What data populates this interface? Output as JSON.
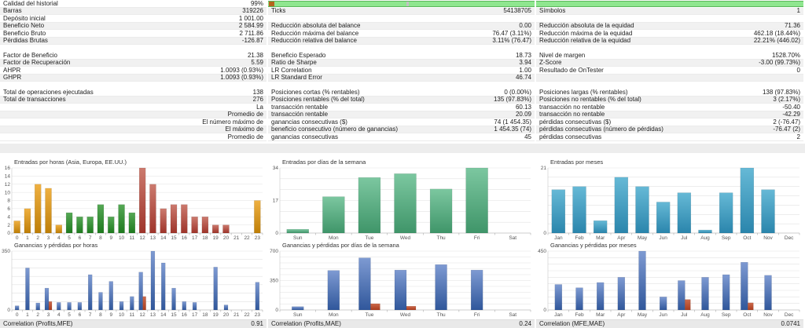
{
  "palette": {
    "asia": [
      "#EFB041",
      "#BE7E07"
    ],
    "europe": [
      "#55A855",
      "#1F7A1F"
    ],
    "usa": [
      "#CC7A6E",
      "#9E342A"
    ],
    "green2": [
      "#7CC7A0",
      "#3F9569"
    ],
    "teal": [
      "#66B9D6",
      "#2A85AC"
    ],
    "blue": [
      "#7E9AD2",
      "#30579B"
    ],
    "loss": [
      "#CC6A4C",
      "#AA3C1E"
    ],
    "quality_green": "#8FE68F",
    "quality_brown": "#B5651D",
    "quality_divider": "#C2C2C2"
  },
  "stats": {
    "columns": [
      {
        "sections": [
          [
            {
              "l": "Calidad del historial",
              "v": "99%"
            },
            {
              "l": "Barras",
              "v": "319226"
            },
            {
              "l": "Depósito inicial",
              "v": "1 001.00"
            },
            {
              "l": "Beneficio Neto",
              "v": "2 584.99"
            },
            {
              "l": "Beneficio Bruto",
              "v": "2 711.86"
            },
            {
              "l": "Pérdidas Brutas",
              "v": "-126.87"
            }
          ],
          [
            {
              "l": "Factor de Beneficio",
              "v": "21.38"
            },
            {
              "l": "Factor de Recuperación",
              "v": "5.59"
            },
            {
              "l": "AHPR",
              "v": "1.0093 (0.93%)"
            },
            {
              "l": "GHPR",
              "v": "1.0093 (0.93%)"
            }
          ],
          [
            {
              "l": "Total de operaciones ejecutadas",
              "v": "138"
            },
            {
              "l": "Total de transacciones",
              "v": "276"
            },
            {
              "l": "",
              "v": "La"
            },
            {
              "l": "",
              "v": "Promedio de"
            },
            {
              "l": "",
              "v": "El número máximo de"
            },
            {
              "l": "",
              "v": "El máximo de"
            },
            {
              "l": "",
              "v": "Promedio de"
            }
          ]
        ]
      },
      {
        "sections": [
          [
            {
              "bar": {
                "brown": true,
                "divider": true
              }
            },
            {
              "l": "Ticks",
              "v": "54138705"
            },
            {
              "l": "",
              "v": ""
            },
            {
              "l": "Reducción absoluta del balance",
              "v": "0.00"
            },
            {
              "l": "Reducción máxima del balance",
              "v": "76.47 (3.11%)"
            },
            {
              "l": "Reducción relativa del balance",
              "v": "3.11% (76.47)"
            }
          ],
          [
            {
              "l": "Beneficio Esperado",
              "v": "18.73"
            },
            {
              "l": "Ratio de Sharpe",
              "v": "3.94"
            },
            {
              "l": "LR Correlation",
              "v": "1.00"
            },
            {
              "l": "LR Standard Error",
              "v": "46.74"
            }
          ],
          [
            {
              "l": "Posiciones cortas (% rentables)",
              "v": "0 (0.00%)"
            },
            {
              "l": "Posiciones rentables (% del total)",
              "v": "135 (97.83%)"
            },
            {
              "l": "transacción rentable",
              "v": "60.13"
            },
            {
              "l": "transacción rentable",
              "v": "20.09"
            },
            {
              "l": "ganancias consecutivas ($)",
              "v": "74 (1 454.35)"
            },
            {
              "l": "beneficio consecutivo (número de ganancias)",
              "v": "1 454.35 (74)"
            },
            {
              "l": "ganancias consecutivas",
              "v": "45"
            }
          ]
        ]
      },
      {
        "sections": [
          [
            {
              "bar": {
                "brown": false,
                "divider": false
              }
            },
            {
              "l": "Símbolos",
              "v": "1"
            },
            {
              "l": "",
              "v": ""
            },
            {
              "l": "Reducción absoluta de la equidad",
              "v": "71.36"
            },
            {
              "l": "Reducción máxima de la equidad",
              "v": "462.18 (18.44%)"
            },
            {
              "l": "Reducción relativa de la equidad",
              "v": "22.21% (446.02)"
            }
          ],
          [
            {
              "l": "Nivel de margen",
              "v": "1528.70%"
            },
            {
              "l": "Z-Score",
              "v": "-3.00 (99.73%)"
            },
            {
              "l": "Resultado de OnTester",
              "v": "0"
            },
            {
              "l": "",
              "v": ""
            }
          ],
          [
            {
              "l": "Posiciones largas (% rentables)",
              "v": "138 (97.83%)"
            },
            {
              "l": "Posiciones no rentables (% del total)",
              "v": "3 (2.17%)"
            },
            {
              "l": "transacción no rentable",
              "v": "-50.40"
            },
            {
              "l": "transacción no rentable",
              "v": "-42.29"
            },
            {
              "l": "pérdidas consecutivas ($)",
              "v": "2 (-76.47)"
            },
            {
              "l": "pérdidas consecutivas (número de pérdidas)",
              "v": "-76.47 (2)"
            },
            {
              "l": "pérdidas consecutivas",
              "v": "2"
            }
          ]
        ]
      }
    ]
  },
  "chart_data": [
    {
      "type": "bar",
      "title": "Entradas por horas (Asia, Europa, EE.UU.)",
      "categories": [
        "0",
        "1",
        "2",
        "3",
        "4",
        "5",
        "6",
        "7",
        "8",
        "9",
        "10",
        "11",
        "12",
        "13",
        "14",
        "15",
        "16",
        "17",
        "18",
        "19",
        "20",
        "21",
        "22",
        "23"
      ],
      "values": [
        3,
        6,
        12,
        11,
        2,
        5,
        4,
        4,
        7,
        4,
        7,
        5,
        16,
        12,
        6,
        7,
        7,
        4,
        4,
        2,
        2,
        0,
        0,
        8
      ],
      "sessions": [
        "asia",
        "asia",
        "asia",
        "asia",
        "asia",
        "europe",
        "europe",
        "europe",
        "europe",
        "europe",
        "europe",
        "europe",
        "usa",
        "usa",
        "usa",
        "usa",
        "usa",
        "usa",
        "usa",
        "usa",
        "usa",
        "asia",
        "asia",
        "asia"
      ],
      "ylim": [
        0,
        16
      ],
      "yticks": [
        0,
        2,
        4,
        6,
        8,
        10,
        12,
        14,
        16
      ]
    },
    {
      "type": "bar",
      "title": "Entradas por días de la semana",
      "categories": [
        "Sun",
        "Mon",
        "Tue",
        "Wed",
        "Thu",
        "Fri",
        "Sat"
      ],
      "values": [
        2,
        19,
        29,
        31,
        23,
        34,
        0
      ],
      "ylim": [
        0,
        34
      ],
      "yticks": [
        0,
        17,
        34
      ]
    },
    {
      "type": "bar",
      "title": "Entradas por meses",
      "categories": [
        "Jan",
        "Feb",
        "Mar",
        "Apr",
        "May",
        "Jun",
        "Jul",
        "Aug",
        "Sep",
        "Oct",
        "Nov",
        "Dec"
      ],
      "values": [
        14,
        15,
        4,
        18,
        15,
        10,
        13,
        1,
        13,
        21,
        14,
        0
      ],
      "ylim": [
        0,
        21
      ],
      "yticks": [
        0,
        21
      ]
    },
    {
      "type": "bar",
      "title": "Ganancias y pérdidas por horas",
      "categories": [
        "0",
        "1",
        "2",
        "3",
        "4",
        "5",
        "6",
        "7",
        "8",
        "9",
        "10",
        "11",
        "12",
        "13",
        "14",
        "15",
        "16",
        "17",
        "18",
        "19",
        "20",
        "21",
        "22",
        "23"
      ],
      "series": [
        {
          "name": "ganancias",
          "values": [
            25,
            250,
            42,
            130,
            45,
            45,
            45,
            210,
            105,
            170,
            50,
            80,
            225,
            350,
            280,
            130,
            50,
            45,
            0,
            255,
            30,
            0,
            0,
            165
          ]
        },
        {
          "name": "pérdidas",
          "values": [
            0,
            0,
            0,
            50,
            0,
            0,
            0,
            0,
            0,
            0,
            0,
            0,
            80,
            0,
            0,
            0,
            0,
            0,
            0,
            0,
            0,
            0,
            0,
            0
          ]
        }
      ],
      "ylim": [
        0,
        350
      ],
      "yticks": [
        0,
        350
      ]
    },
    {
      "type": "bar",
      "title": "Ganancias y pérdidas por días de la semana",
      "categories": [
        "Sun",
        "Mon",
        "Tue",
        "Wed",
        "Thu",
        "Fri",
        "Sat"
      ],
      "series": [
        {
          "name": "ganancias",
          "values": [
            40,
            470,
            620,
            475,
            540,
            475,
            0
          ]
        },
        {
          "name": "pérdidas",
          "values": [
            0,
            0,
            75,
            45,
            0,
            0,
            0
          ]
        }
      ],
      "ylim": [
        0,
        700
      ],
      "yticks": [
        0,
        350,
        700
      ]
    },
    {
      "type": "bar",
      "title": "Ganancias y pérdidas por meses",
      "categories": [
        "Jan",
        "Feb",
        "Mar",
        "Apr",
        "May",
        "Jun",
        "Jul",
        "Aug",
        "Sep",
        "Oct",
        "Nov",
        "Dec"
      ],
      "series": [
        {
          "name": "ganancias",
          "values": [
            195,
            170,
            210,
            250,
            450,
            100,
            225,
            250,
            270,
            365,
            265,
            0
          ]
        },
        {
          "name": "pérdidas",
          "values": [
            0,
            0,
            0,
            0,
            0,
            0,
            80,
            0,
            0,
            55,
            0,
            0
          ]
        }
      ],
      "ylim": [
        0,
        450
      ],
      "yticks": [
        0,
        450
      ]
    }
  ],
  "correlations": [
    {
      "label": "Correlation (Profits,MFE)",
      "value": "0.91"
    },
    {
      "label": "Correlation (Profits,MAE)",
      "value": "0.24"
    },
    {
      "label": "Correlation (MFE,MAE)",
      "value": "0.0741"
    }
  ]
}
